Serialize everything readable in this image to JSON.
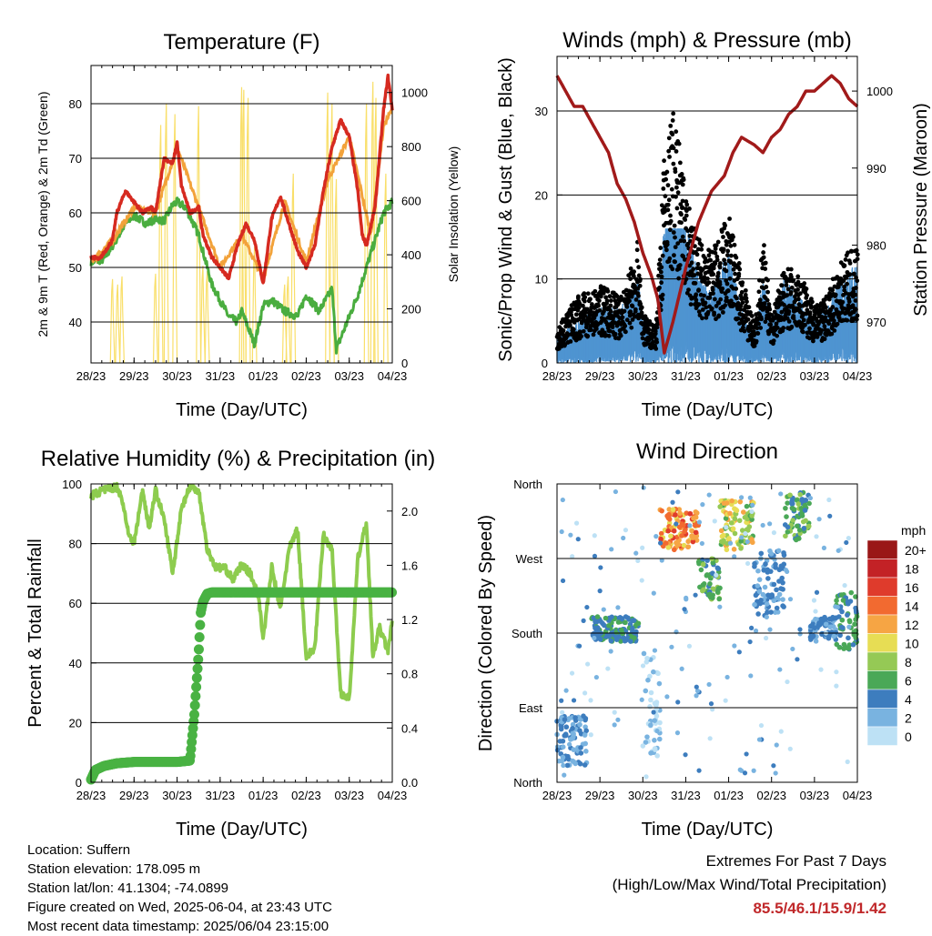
{
  "footer": {
    "location": "Location: Suffern",
    "elevation": "Station elevation: 178.095 m",
    "latlon": "Station lat/lon: 41.1304; -74.0899",
    "created": "Figure created on Wed, 2025-06-04, at 23:43 UTC",
    "recent": "Most recent data timestamp: 2025/06/04 23:15:00",
    "extremes_title": "Extremes For Past 7 Days",
    "extremes_sub": "(High/Low/Max Wind/Total Precipitation)",
    "extremes_values": "85.5/46.1/15.9/1.42"
  },
  "chart_data": [
    {
      "id": "temperature",
      "type": "line",
      "title": "Temperature (F)",
      "xlabel": "Time (Day/UTC)",
      "ylabel": "2m & 9m T (Red, Orange) & 2m Td (Green)",
      "y2label": "Solar Insolation (Yellow)",
      "x_ticks": [
        "28/23",
        "29/23",
        "30/23",
        "31/23",
        "01/23",
        "02/23",
        "03/23",
        "04/23"
      ],
      "xlim": [
        0,
        7
      ],
      "ylim": [
        32.5,
        87
      ],
      "y_ticks": [
        40,
        50,
        60,
        70,
        80
      ],
      "y2lim": [
        0,
        1100
      ],
      "y2_ticks": [
        0,
        200,
        400,
        600,
        800,
        1000
      ],
      "grid": "horizontal",
      "series": [
        {
          "color": "#d62a20",
          "x": [
            0,
            0.2,
            0.5,
            0.6,
            0.8,
            1.0,
            1.2,
            1.4,
            1.5,
            1.7,
            1.9,
            2.0,
            2.1,
            2.3,
            2.5,
            2.6,
            2.8,
            3.0,
            3.2,
            3.4,
            3.6,
            3.8,
            4.0,
            4.1,
            4.2,
            4.4,
            4.6,
            4.8,
            5.0,
            5.2,
            5.4,
            5.6,
            5.8,
            6.0,
            6.2,
            6.3,
            6.4,
            6.6,
            6.8,
            6.9,
            7.0
          ],
          "y": [
            52,
            51.5,
            55,
            60,
            64,
            62,
            60,
            61,
            60,
            70,
            69,
            73,
            65,
            60,
            61,
            56,
            52,
            50,
            48,
            54,
            58,
            55,
            47,
            53,
            59,
            63,
            58,
            53,
            50,
            54,
            64,
            72,
            77,
            74,
            64,
            56,
            54,
            61,
            79,
            85,
            79
          ]
        },
        {
          "color": "#f2a23a",
          "x": [
            0,
            0.5,
            1.0,
            1.5,
            2.0,
            2.5,
            3.0,
            3.5,
            4.0,
            4.5,
            5.0,
            5.5,
            6.0,
            6.5,
            6.8,
            7.0
          ],
          "y": [
            51,
            55,
            61,
            60,
            72,
            61,
            50,
            56,
            48,
            62,
            51,
            66,
            74,
            56,
            76,
            79
          ]
        },
        {
          "color": "#4aad3f",
          "x": [
            0,
            0.3,
            0.5,
            0.8,
            1.0,
            1.3,
            1.5,
            1.7,
            1.9,
            2.0,
            2.2,
            2.5,
            2.8,
            3.0,
            3.2,
            3.4,
            3.5,
            3.6,
            3.8,
            4.0,
            4.2,
            4.5,
            4.8,
            5.0,
            5.3,
            5.6,
            5.7,
            5.8,
            6.0,
            6.2,
            6.4,
            6.6,
            6.8,
            7.0
          ],
          "y": [
            51,
            51.5,
            54,
            58,
            59.5,
            58,
            59,
            58.5,
            61.5,
            62,
            61,
            56,
            47,
            44,
            41,
            40,
            42,
            40,
            36,
            43,
            44,
            42,
            41,
            45,
            42,
            46,
            35,
            37,
            41,
            45,
            50,
            55,
            60,
            62
          ]
        }
      ],
      "insolation": {
        "color": "#f9df6a",
        "peaks_x": [
          0.5,
          0.62,
          0.72,
          1.5,
          1.62,
          1.75,
          1.95,
          2.5,
          2.6,
          2.7,
          3.5,
          3.55,
          3.65,
          3.8,
          4.5,
          4.58,
          4.7,
          5.5,
          5.6,
          5.7,
          6.4,
          6.55,
          6.62,
          6.85
        ],
        "peaks_y": [
          310,
          290,
          320,
          330,
          880,
          960,
          920,
          950,
          360,
          340,
          1020,
          1010,
          980,
          430,
          290,
          320,
          700,
          1000,
          960,
          680,
          960,
          1040,
          980,
          700
        ]
      }
    },
    {
      "id": "winds",
      "type": "scatter",
      "title": "Winds (mph) & Pressure (mb)",
      "xlabel": "Time (Day/UTC)",
      "ylabel": "Sonic/Prop Wind & Gust (Blue, Black)",
      "y2label": "Station Pressure (Maroon)",
      "x_ticks": [
        "28/23",
        "29/23",
        "30/23",
        "31/23",
        "01/23",
        "02/23",
        "03/23",
        "04/23"
      ],
      "xlim": [
        0,
        7
      ],
      "ylim": [
        0,
        36.5
      ],
      "y_ticks": [
        0,
        10,
        20,
        30
      ],
      "y2lim": [
        964.7,
        1004.5
      ],
      "y2_ticks": [
        970,
        980,
        990,
        1000
      ],
      "grid": "horizontal",
      "wind_envelope": {
        "x": [
          0,
          0.5,
          1.0,
          1.5,
          1.7,
          1.9,
          2.0,
          2.3,
          2.5,
          2.7,
          3.0,
          3.2,
          3.4,
          3.6,
          3.8,
          4.0,
          4.3,
          4.6,
          4.8,
          5.0,
          5.3,
          5.6,
          6.0,
          6.3,
          6.6,
          7.0
        ],
        "wind": [
          2,
          3,
          4,
          4,
          5,
          6,
          3,
          2,
          10,
          12,
          10,
          8,
          6,
          5,
          7,
          8,
          4,
          2,
          6,
          3,
          6,
          5,
          3,
          4,
          6,
          7
        ],
        "gust": [
          4,
          7,
          8,
          7,
          10,
          13,
          5,
          4,
          22,
          27,
          18,
          14,
          12,
          12,
          14,
          16,
          9,
          4,
          13,
          5,
          10,
          10,
          6,
          7,
          11,
          12
        ]
      },
      "pressure": {
        "color": "#a11a1a",
        "x": [
          0,
          0.2,
          0.4,
          0.6,
          0.8,
          1.0,
          1.2,
          1.4,
          1.6,
          1.8,
          2.0,
          2.2,
          2.35,
          2.5,
          2.7,
          3.0,
          3.3,
          3.6,
          3.9,
          4.1,
          4.3,
          4.6,
          4.8,
          5.0,
          5.2,
          5.4,
          5.6,
          5.8,
          6.0,
          6.2,
          6.4,
          6.6,
          6.8,
          7.0
        ],
        "y": [
          1002,
          1000,
          998,
          998,
          996,
          994,
          992,
          988,
          986,
          983,
          979,
          976,
          973,
          966,
          970,
          977,
          983,
          987,
          989,
          992,
          994,
          993,
          992,
          994,
          995,
          997,
          998,
          1000,
          1000,
          1001,
          1002,
          1001,
          999,
          998
        ]
      }
    },
    {
      "id": "humidity",
      "type": "line",
      "title": "Relative Humidity (%) & Precipitation (in)",
      "xlabel": "Time (Day/UTC)",
      "ylabel": "Percent & Total Rainfall",
      "x_ticks": [
        "28/23",
        "29/23",
        "30/23",
        "31/23",
        "01/23",
        "02/23",
        "03/23",
        "04/23"
      ],
      "xlim": [
        0,
        7
      ],
      "ylim": [
        0,
        100
      ],
      "y_ticks": [
        0,
        20,
        40,
        60,
        80,
        100
      ],
      "y2lim": [
        0,
        2.2
      ],
      "y2_ticks": [
        "0.0",
        "0.4",
        "0.8",
        "1.2",
        "1.6",
        "2.0"
      ],
      "grid": "horizontal",
      "series": [
        {
          "name": "humidity",
          "color": "#8dcc4e",
          "x": [
            0,
            0.3,
            0.6,
            0.7,
            0.9,
            1.0,
            1.2,
            1.35,
            1.5,
            1.7,
            1.9,
            2.1,
            2.3,
            2.5,
            2.7,
            2.9,
            3.1,
            3.3,
            3.5,
            3.7,
            3.9,
            4.0,
            4.2,
            4.4,
            4.6,
            4.8,
            5.0,
            5.2,
            5.4,
            5.6,
            5.8,
            6.0,
            6.2,
            6.4,
            6.55,
            6.7,
            6.9,
            7.0
          ],
          "y": [
            96,
            98,
            99,
            96,
            82,
            80,
            98,
            85,
            98,
            88,
            70,
            92,
            99,
            98,
            78,
            72,
            72,
            68,
            73,
            70,
            62,
            48,
            72,
            58,
            78,
            85,
            42,
            45,
            83,
            78,
            30,
            28,
            75,
            87,
            42,
            52,
            44,
            54
          ]
        },
        {
          "name": "precipitation",
          "color": "#49b243",
          "x": [
            0,
            0.1,
            0.3,
            0.6,
            1.0,
            1.5,
            2.0,
            2.3,
            2.4,
            2.5,
            2.55,
            2.6,
            2.7,
            2.8,
            3.0,
            4.0,
            5.0,
            6.0,
            7.0
          ],
          "y": [
            0.02,
            0.09,
            0.12,
            0.14,
            0.15,
            0.15,
            0.15,
            0.16,
            0.5,
            0.95,
            1.25,
            1.33,
            1.39,
            1.4,
            1.4,
            1.4,
            1.4,
            1.4,
            1.4
          ]
        }
      ]
    },
    {
      "id": "wind_direction",
      "type": "scatter",
      "title": "Wind Direction",
      "xlabel": "Time (Day/UTC)",
      "ylabel": "Direction (Colored By Speed)",
      "x_ticks": [
        "28/23",
        "29/23",
        "30/23",
        "31/23",
        "01/23",
        "02/23",
        "03/23",
        "04/23"
      ],
      "xlim": [
        0,
        7
      ],
      "ylim": [
        0,
        360
      ],
      "y_ticks": [
        "North",
        "East",
        "South",
        "West",
        "North"
      ],
      "grid": "horizontal",
      "legend_title": "mph",
      "legend_labels": [
        "20+",
        "18",
        "16",
        "14",
        "12",
        "10",
        "8",
        "6",
        "4",
        "2",
        "0"
      ],
      "legend_colors": [
        "#9a1717",
        "#c32226",
        "#df3b2c",
        "#f26a30",
        "#f6a544",
        "#e7dd54",
        "#95c955",
        "#4aa857",
        "#3d7dbe",
        "#79b3e0",
        "#bde1f5"
      ],
      "clusters": [
        {
          "x": [
            0,
            0.7
          ],
          "dir": [
            20,
            80
          ],
          "speed": [
            2,
            4
          ]
        },
        {
          "x": [
            0.8,
            1.9
          ],
          "dir": [
            170,
            200
          ],
          "speed": [
            3,
            6
          ]
        },
        {
          "x": [
            2.0,
            2.4
          ],
          "dir": [
            30,
            160
          ],
          "speed": [
            0,
            2
          ]
        },
        {
          "x": [
            2.4,
            3.3
          ],
          "dir": [
            280,
            330
          ],
          "speed": [
            10,
            16
          ]
        },
        {
          "x": [
            3.3,
            3.8
          ],
          "dir": [
            220,
            270
          ],
          "speed": [
            4,
            8
          ]
        },
        {
          "x": [
            3.8,
            4.6
          ],
          "dir": [
            280,
            340
          ],
          "speed": [
            6,
            12
          ]
        },
        {
          "x": [
            4.6,
            5.3
          ],
          "dir": [
            200,
            280
          ],
          "speed": [
            2,
            5
          ]
        },
        {
          "x": [
            5.3,
            5.9
          ],
          "dir": [
            290,
            350
          ],
          "speed": [
            4,
            8
          ]
        },
        {
          "x": [
            5.9,
            6.5
          ],
          "dir": [
            170,
            200
          ],
          "speed": [
            2,
            5
          ]
        },
        {
          "x": [
            6.5,
            7.0
          ],
          "dir": [
            160,
            230
          ],
          "speed": [
            3,
            7
          ]
        }
      ]
    }
  ]
}
